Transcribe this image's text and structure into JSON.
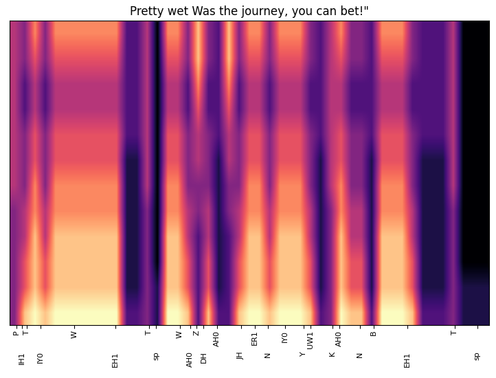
{
  "chart_data": {
    "type": "heatmap",
    "title": "Pretty wet Was the journey, you can bet!\"",
    "xlim": [
      0,
      141
    ],
    "xticks": [
      {
        "value": 2,
        "label": "P"
      },
      {
        "value": 3.5,
        "label": "IH1"
      },
      {
        "value": 5,
        "label": "T"
      },
      {
        "value": 9,
        "label": "IY0"
      },
      {
        "value": 19,
        "label": "W"
      },
      {
        "value": 31,
        "label": "EH1"
      },
      {
        "value": 41,
        "label": "T"
      },
      {
        "value": 43,
        "label": "sp"
      },
      {
        "value": 50,
        "label": "W"
      },
      {
        "value": 53,
        "label": "AH0"
      },
      {
        "value": 55,
        "label": "Z"
      },
      {
        "value": 57,
        "label": "DH"
      },
      {
        "value": 61,
        "label": "AH0"
      },
      {
        "value": 68,
        "label": "JH"
      },
      {
        "value": 72,
        "label": "ER1"
      },
      {
        "value": 76,
        "label": "N"
      },
      {
        "value": 81,
        "label": "IY0"
      },
      {
        "value": 86.5,
        "label": "Y"
      },
      {
        "value": 88.5,
        "label": "UW1"
      },
      {
        "value": 95,
        "label": "K"
      },
      {
        "value": 97,
        "label": "AH0"
      },
      {
        "value": 103,
        "label": "N"
      },
      {
        "value": 107,
        "label": "B"
      },
      {
        "value": 117,
        "label": "EH1"
      },
      {
        "value": 131,
        "label": "T"
      },
      {
        "value": 137.5,
        "label": "sp"
      }
    ],
    "tick_labels": "x",
    "cells": [
      [
        4,
        8,
        9,
        8,
        9,
        9,
        9,
        9,
        9,
        9,
        9,
        3,
        3,
        4,
        2,
        9,
        9,
        8,
        3,
        8,
        3,
        3,
        8,
        9,
        9,
        8,
        9,
        9,
        9,
        8,
        3,
        4,
        9,
        8,
        8,
        3,
        9,
        9,
        9,
        8,
        3,
        3,
        3,
        4,
        2,
        2,
        2
      ],
      [
        4,
        6,
        8,
        6,
        8,
        8,
        8,
        8,
        8,
        8,
        8,
        2,
        2,
        4,
        2,
        8,
        8,
        6,
        3,
        6,
        2,
        3,
        6,
        8,
        8,
        6,
        8,
        8,
        8,
        6,
        2,
        4,
        8,
        6,
        6,
        2,
        8,
        8,
        8,
        6,
        2,
        2,
        2,
        4,
        2,
        2,
        2
      ],
      [
        4,
        6,
        8,
        6,
        8,
        8,
        8,
        8,
        8,
        8,
        8,
        2,
        2,
        4,
        1,
        8,
        8,
        6,
        3,
        6,
        2,
        3,
        6,
        8,
        8,
        6,
        8,
        8,
        8,
        6,
        2,
        4,
        8,
        6,
        6,
        2,
        8,
        8,
        8,
        6,
        2,
        2,
        2,
        4,
        1,
        1,
        1
      ],
      [
        4,
        5,
        8,
        5,
        8,
        8,
        8,
        8,
        8,
        8,
        8,
        2,
        2,
        4,
        1,
        8,
        8,
        5,
        3,
        5,
        2,
        3,
        5,
        8,
        8,
        5,
        8,
        8,
        8,
        5,
        2,
        4,
        8,
        5,
        5,
        2,
        8,
        8,
        8,
        5,
        2,
        2,
        2,
        4,
        1,
        1,
        1
      ],
      [
        4,
        5,
        7,
        5,
        7,
        7,
        7,
        7,
        7,
        7,
        7,
        2,
        2,
        4,
        1,
        7,
        7,
        5,
        4,
        5,
        2,
        4,
        5,
        7,
        7,
        5,
        7,
        7,
        7,
        5,
        2,
        4,
        7,
        5,
        5,
        2,
        7,
        7,
        7,
        5,
        2,
        2,
        2,
        4,
        1,
        1,
        1
      ],
      [
        5,
        4,
        7,
        4,
        7,
        7,
        7,
        7,
        7,
        7,
        7,
        2,
        2,
        5,
        1,
        7,
        7,
        4,
        4,
        4,
        2,
        4,
        4,
        7,
        7,
        4,
        7,
        7,
        7,
        4,
        2,
        5,
        7,
        4,
        4,
        2,
        7,
        7,
        7,
        4,
        2,
        2,
        2,
        5,
        1,
        1,
        1
      ],
      [
        5,
        4,
        6,
        4,
        6,
        6,
        6,
        6,
        6,
        6,
        6,
        2,
        2,
        5,
        1,
        6,
        6,
        4,
        5,
        4,
        2,
        5,
        4,
        6,
        6,
        4,
        6,
        6,
        6,
        4,
        2,
        5,
        6,
        4,
        4,
        2,
        6,
        6,
        6,
        4,
        2,
        2,
        2,
        5,
        1,
        1,
        1
      ],
      [
        5,
        4,
        6,
        4,
        6,
        6,
        6,
        6,
        6,
        6,
        6,
        3,
        3,
        5,
        1,
        6,
        6,
        4,
        5,
        4,
        3,
        5,
        4,
        6,
        6,
        4,
        6,
        6,
        6,
        4,
        3,
        5,
        6,
        4,
        4,
        3,
        6,
        6,
        6,
        4,
        3,
        3,
        3,
        5,
        1,
        1,
        1
      ],
      [
        5,
        3,
        5,
        3,
        5,
        5,
        5,
        5,
        5,
        5,
        5,
        3,
        3,
        5,
        1,
        5,
        5,
        3,
        6,
        3,
        3,
        6,
        3,
        5,
        5,
        3,
        5,
        5,
        5,
        3,
        3,
        5,
        5,
        3,
        3,
        3,
        5,
        5,
        5,
        3,
        3,
        3,
        3,
        5,
        1,
        1,
        1
      ],
      [
        5,
        3,
        5,
        3,
        5,
        5,
        5,
        5,
        5,
        5,
        5,
        3,
        3,
        5,
        1,
        5,
        5,
        3,
        7,
        3,
        3,
        7,
        3,
        5,
        5,
        3,
        5,
        5,
        5,
        3,
        3,
        5,
        5,
        3,
        3,
        3,
        5,
        5,
        5,
        3,
        3,
        3,
        3,
        5,
        1,
        1,
        1
      ],
      [
        5,
        4,
        6,
        4,
        6,
        6,
        6,
        6,
        6,
        6,
        6,
        3,
        3,
        5,
        1,
        6,
        6,
        4,
        8,
        4,
        3,
        8,
        4,
        6,
        6,
        4,
        6,
        6,
        6,
        4,
        3,
        5,
        6,
        4,
        4,
        3,
        6,
        6,
        6,
        4,
        3,
        3,
        3,
        5,
        1,
        1,
        1
      ],
      [
        5,
        4,
        7,
        4,
        7,
        7,
        7,
        7,
        7,
        7,
        7,
        3,
        3,
        5,
        1,
        7,
        7,
        4,
        8,
        4,
        3,
        8,
        4,
        7,
        7,
        4,
        7,
        7,
        7,
        4,
        3,
        5,
        7,
        4,
        4,
        3,
        7,
        7,
        7,
        4,
        3,
        3,
        3,
        5,
        1,
        1,
        1
      ]
    ]
  }
}
